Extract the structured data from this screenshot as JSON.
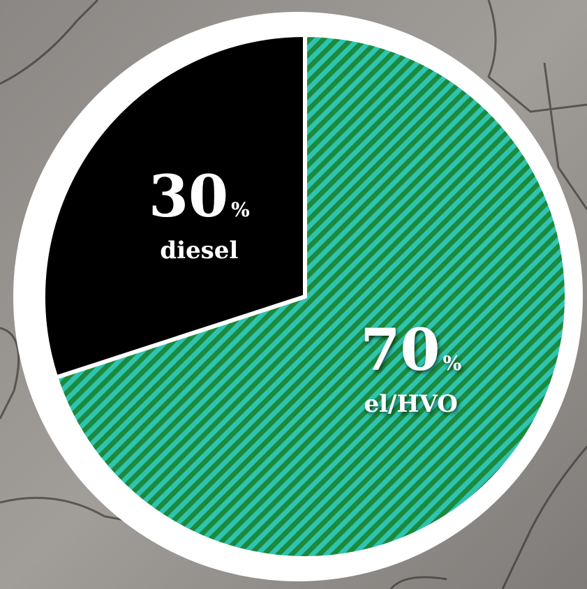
{
  "chart_data": {
    "type": "pie",
    "categories": [
      "el/HVO",
      "diesel"
    ],
    "values": [
      70,
      30
    ],
    "unit_label": "%",
    "colors": [
      "#2fc3b0",
      "#000000"
    ],
    "hatch_color": "#1b8a3c"
  }
}
